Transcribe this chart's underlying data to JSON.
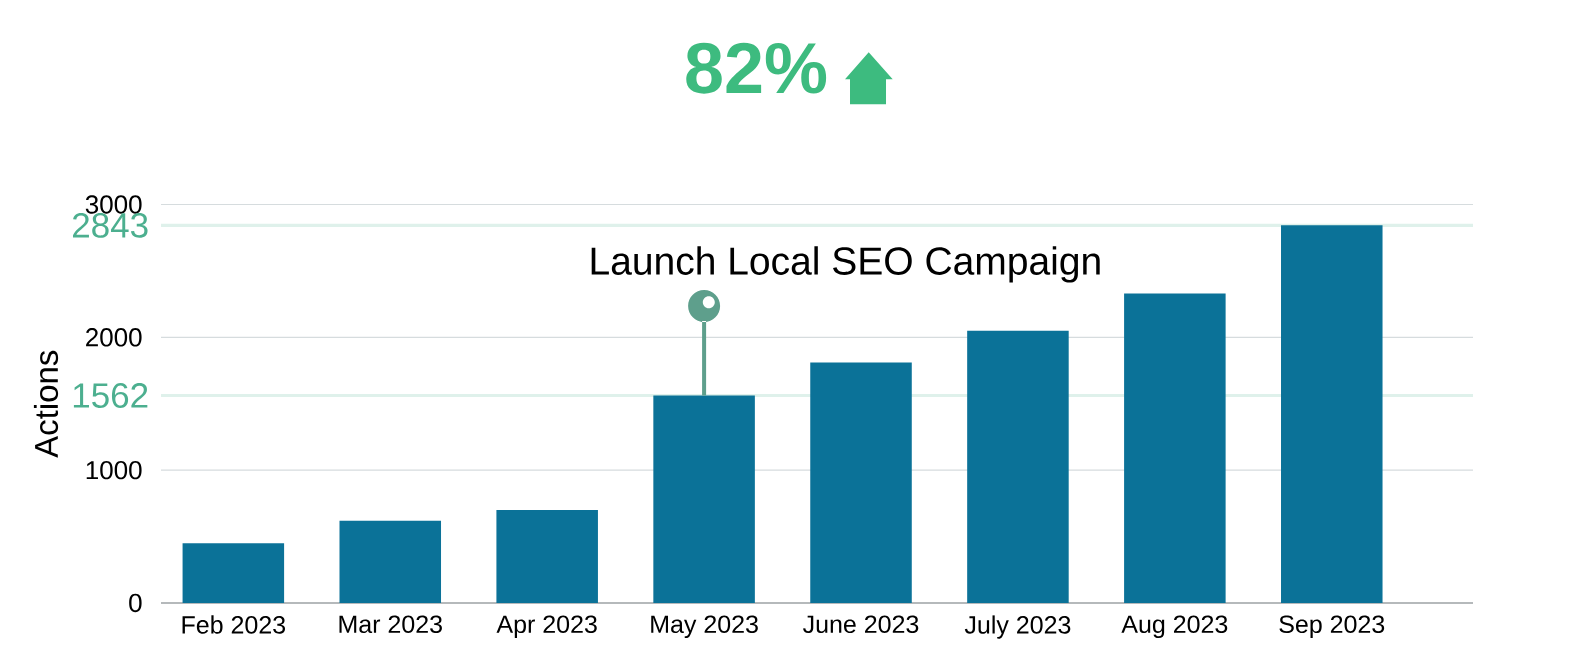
{
  "chart_data": {
    "type": "bar",
    "title": "82%",
    "ylabel": "Actions",
    "categories": [
      "Feb 2023",
      "Mar 2023",
      "Apr 2023",
      "May 2023",
      "June 2023",
      "July 2023",
      "Aug 2023",
      "Sep 2023"
    ],
    "values": [
      450,
      620,
      700,
      1562,
      1810,
      2050,
      2330,
      2843
    ],
    "color": "#0b7298",
    "ylim": [
      0,
      3000
    ],
    "yticks": [
      0,
      1000,
      2000,
      3000
    ],
    "grid": "y",
    "ref_lines": [
      {
        "axis": "y",
        "value": 1562,
        "label": "1562",
        "color": "#dff1eb"
      },
      {
        "axis": "y",
        "value": 2843,
        "label": "2843",
        "color": "#dff1eb"
      }
    ],
    "annotations": [
      {
        "text": "Launch Local SEO Campaign",
        "x": "May 2023",
        "y": 1562
      }
    ]
  }
}
